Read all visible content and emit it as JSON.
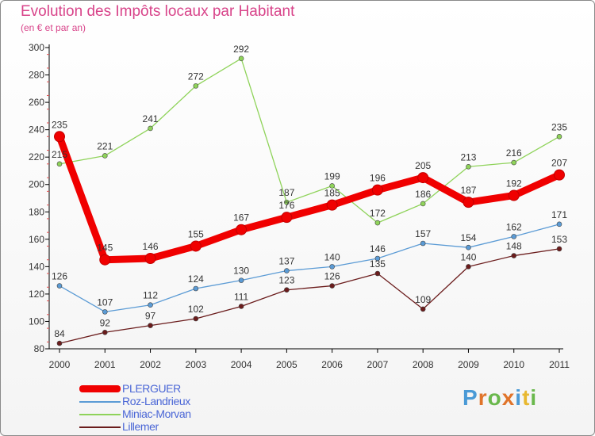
{
  "header": {
    "title": "Evolution des Impôts locaux par Habitant",
    "subtitle": "(en € et par an)"
  },
  "brand": {
    "text": "Proxiti",
    "colors": [
      "#4a9ad6",
      "#e0742a",
      "#6ab84c",
      "#e0742a",
      "#4a9ad6",
      "#e8b830",
      "#6ab84c"
    ]
  },
  "chart_data": {
    "type": "line",
    "title": "Evolution des Impôts locaux par Habitant",
    "subtitle": "(en € et par an)",
    "xlabel": "",
    "ylabel": "",
    "ylim": [
      80,
      300
    ],
    "yticks": [
      "80",
      "100",
      "120",
      "140",
      "160",
      "180",
      "200",
      "220",
      "240",
      "260",
      "280",
      "300"
    ],
    "categories": [
      "2000",
      "2001",
      "2002",
      "2003",
      "2004",
      "2005",
      "2006",
      "2007",
      "2008",
      "2009",
      "2010",
      "2011"
    ],
    "grid": false,
    "legend_position": "bottom-left",
    "series": [
      {
        "name": "PLERGUER",
        "color": "#f00000",
        "values": [
          235,
          145,
          146,
          155,
          167,
          176,
          185,
          196,
          205,
          187,
          192,
          207
        ]
      },
      {
        "name": "Roz-Landrieux",
        "color": "#5b9bd5",
        "values": [
          126,
          107,
          112,
          124,
          130,
          137,
          140,
          146,
          157,
          154,
          162,
          171
        ]
      },
      {
        "name": "Miniac-Morvan",
        "color": "#8fd35a",
        "values": [
          215,
          221,
          241,
          272,
          292,
          187,
          199,
          172,
          186,
          213,
          216,
          235
        ]
      },
      {
        "name": "Lillemer",
        "color": "#6b1c1c",
        "values": [
          84,
          92,
          97,
          102,
          111,
          123,
          126,
          135,
          109,
          140,
          148,
          153
        ]
      }
    ]
  }
}
